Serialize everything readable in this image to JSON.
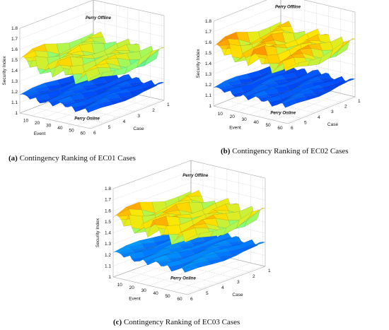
{
  "chart_data": [
    {
      "type": "surface3d",
      "caption_label": "(a)",
      "caption_text": "Contingency Ranking of EC01 Cases",
      "zlabel": "Security Index",
      "xlabel": "Event",
      "ylabel": "Case",
      "zticks": [
        "1",
        "1.1",
        "1.2",
        "1.3",
        "1.4",
        "1.5",
        "1.6",
        "1.7",
        "1.8"
      ],
      "xticks": [
        "10",
        "20",
        "30",
        "40",
        "50",
        "60"
      ],
      "yticks": [
        "1",
        "2",
        "3",
        "4",
        "5",
        "6"
      ],
      "zlim": [
        1,
        1.8
      ],
      "surfaces": [
        {
          "name": "Perry Offline",
          "level": 1.45,
          "amplitude": 0.18
        },
        {
          "name": "Perry Online",
          "level": 1.15,
          "amplitude": 0.07
        }
      ]
    },
    {
      "type": "surface3d",
      "caption_label": "(b)",
      "caption_text": "Contingency Ranking of EC02 Cases",
      "zlabel": "Security Index",
      "xlabel": "Event",
      "ylabel": "Case",
      "zticks": [
        "1",
        "1.1",
        "1.2",
        "1.3",
        "1.4",
        "1.5",
        "1.6",
        "1.7",
        "1.8"
      ],
      "xticks": [
        "10",
        "20",
        "30",
        "40",
        "50",
        "60"
      ],
      "yticks": [
        "1",
        "2",
        "3",
        "4",
        "5",
        "6"
      ],
      "zlim": [
        1,
        1.8
      ],
      "surfaces": [
        {
          "name": "Perry Offline",
          "level": 1.5,
          "amplitude": 0.18
        },
        {
          "name": "Perry Online",
          "level": 1.15,
          "amplitude": 0.07
        }
      ]
    },
    {
      "type": "surface3d",
      "caption_label": "(c)",
      "caption_text": "Contingency Ranking of EC03 Cases",
      "zlabel": "Security Index",
      "xlabel": "Event",
      "ylabel": "Case",
      "zticks": [
        "1",
        "1.1",
        "1.2",
        "1.3",
        "1.4",
        "1.5",
        "1.6",
        "1.7",
        "1.8"
      ],
      "xticks": [
        "10",
        "20",
        "30",
        "40",
        "50",
        "60"
      ],
      "yticks": [
        "1",
        "2",
        "3",
        "4",
        "5",
        "6"
      ],
      "zlim": [
        1,
        1.8
      ],
      "surfaces": [
        {
          "name": "Perry Offline",
          "level": 1.48,
          "amplitude": 0.18
        },
        {
          "name": "Perry Online",
          "level": 1.2,
          "amplitude": 0.07
        }
      ]
    }
  ]
}
